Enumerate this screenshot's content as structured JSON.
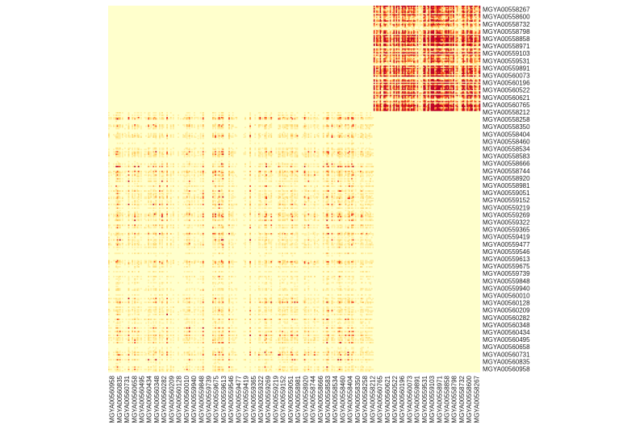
{
  "chart_data": {
    "type": "heatmap",
    "title": "",
    "xlabel": "",
    "ylabel": "",
    "legend": "none",
    "color_scale": [
      "#ffffcc",
      "#ffeda0",
      "#fed976",
      "#feb24c",
      "#fd8d3c",
      "#f03b20",
      "#bd0026"
    ],
    "background_color": "#ffffcc",
    "y_labels": [
      "MGYA00558267",
      "MGYA00558600",
      "MGYA00558732",
      "MGYA00558798",
      "MGYA00558858",
      "MGYA00558971",
      "MGYA00559103",
      "MGYA00559531",
      "MGYA00559891",
      "MGYA00560073",
      "MGYA00560196",
      "MGYA00560522",
      "MGYA00560621",
      "MGYA00560765",
      "MGYA00558212",
      "MGYA00558258",
      "MGYA00558350",
      "MGYA00558404",
      "MGYA00558460",
      "MGYA00558534",
      "MGYA00558583",
      "MGYA00558666",
      "MGYA00558744",
      "MGYA00558920",
      "MGYA00558981",
      "MGYA00559051",
      "MGYA00559152",
      "MGYA00559219",
      "MGYA00559269",
      "MGYA00559322",
      "MGYA00559365",
      "MGYA00559419",
      "MGYA00559477",
      "MGYA00559546",
      "MGYA00559613",
      "MGYA00559675",
      "MGYA00559739",
      "MGYA00559848",
      "MGYA00559940",
      "MGYA00560010",
      "MGYA00560128",
      "MGYA00560209",
      "MGYA00560282",
      "MGYA00560348",
      "MGYA00560434",
      "MGYA00560495",
      "MGYA00560658",
      "MGYA00560731",
      "MGYA00560835",
      "MGYA00560958"
    ],
    "x_labels": [
      "MGYA00560958",
      "MGYA00560835",
      "MGYA00560731",
      "MGYA00560658",
      "MGYA00560495",
      "MGYA00560434",
      "MGYA00560348",
      "MGYA00560282",
      "MGYA00560209",
      "MGYA00560128",
      "MGYA00560010",
      "MGYA00559940",
      "MGYA00559848",
      "MGYA00559739",
      "MGYA00559675",
      "MGYA00559613",
      "MGYA00559546",
      "MGYA00559477",
      "MGYA00559419",
      "MGYA00559365",
      "MGYA00559322",
      "MGYA00559269",
      "MGYA00559219",
      "MGYA00559152",
      "MGYA00559051",
      "MGYA00558981",
      "MGYA00558920",
      "MGYA00558744",
      "MGYA00558666",
      "MGYA00558583",
      "MGYA00558534",
      "MGYA00558460",
      "MGYA00558404",
      "MGYA00558350",
      "MGYA00558258",
      "MGYA00558212",
      "MGYA00560765",
      "MGYA00560621",
      "MGYA00560522",
      "MGYA00560196",
      "MGYA00560073",
      "MGYA00559891",
      "MGYA00559531",
      "MGYA00559103",
      "MGYA00558971",
      "MGYA00558858",
      "MGYA00558798",
      "MGYA00558732",
      "MGYA00558600",
      "MGYA00558267"
    ],
    "blocks": [
      {
        "rows": [
          "MGYA00558267",
          "MGYA00558212"
        ],
        "cols": [
          "MGYA00558212",
          "MGYA00558267"
        ],
        "intensity": "high"
      },
      {
        "rows": [
          "MGYA00558258",
          "MGYA00560958"
        ],
        "cols": [
          "MGYA00560958",
          "MGYA00558258"
        ],
        "intensity": "low"
      },
      {
        "rows": [
          "MGYA00558267",
          "MGYA00558212"
        ],
        "cols": [
          "MGYA00560958",
          "MGYA00558258"
        ],
        "intensity": "none"
      },
      {
        "rows": [
          "MGYA00558258",
          "MGYA00560958"
        ],
        "cols": [
          "MGYA00558212",
          "MGYA00558267"
        ],
        "intensity": "none"
      }
    ]
  }
}
